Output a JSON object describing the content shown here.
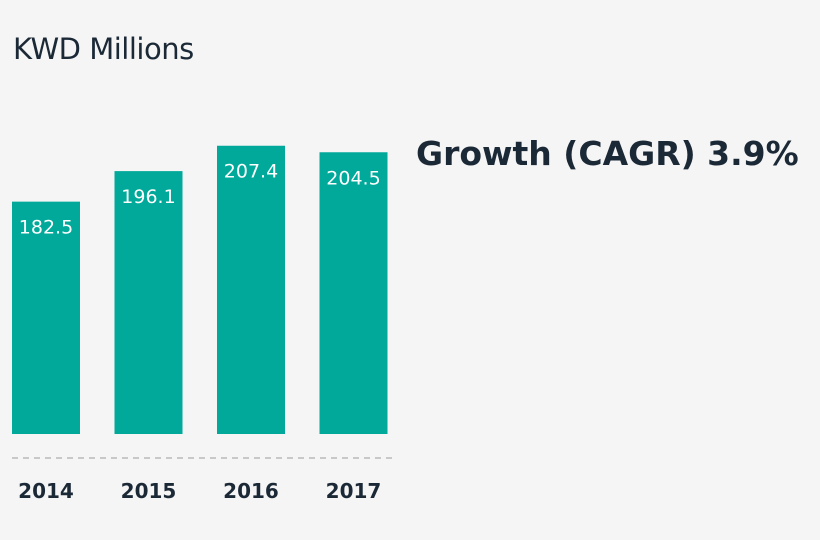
{
  "chart_data": {
    "type": "bar",
    "title": "KWD Millions",
    "annotation": "Growth (CAGR) 3.9%",
    "categories": [
      "2014",
      "2015",
      "2016",
      "2017"
    ],
    "values": [
      182.5,
      196.1,
      207.4,
      204.5
    ],
    "value_labels": [
      "182.5",
      "196.1",
      "207.4",
      "204.5"
    ],
    "xlabel": "",
    "ylabel": "KWD Millions",
    "ylim": [
      0,
      230
    ],
    "grid": false,
    "bar_color": "#00a99a",
    "baseline_color": "#b9b9b9"
  }
}
